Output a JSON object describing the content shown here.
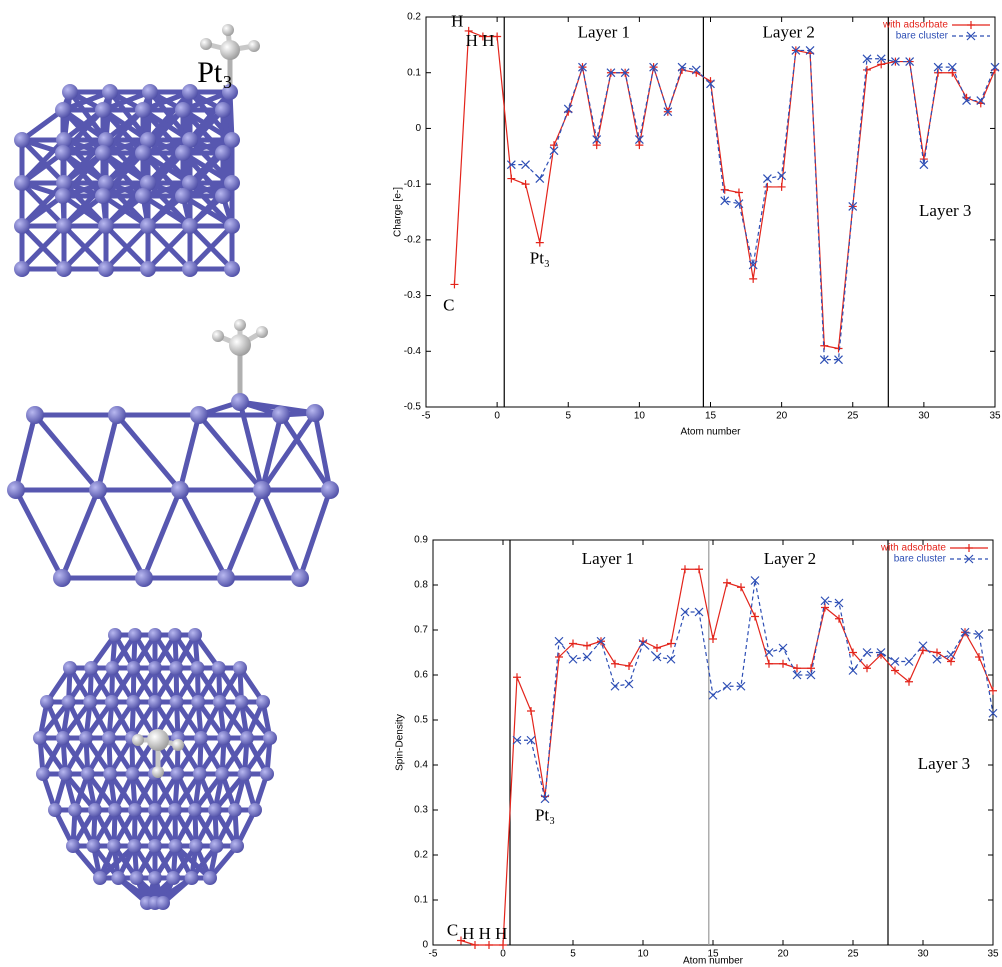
{
  "structures": {
    "label": "Pt₃"
  },
  "chart_data": [
    {
      "type": "line",
      "xlabel": "Atom number",
      "ylabel": "Charge [e-]",
      "x": [
        -3,
        -2,
        -1,
        0,
        1,
        2,
        3,
        4,
        5,
        6,
        7,
        8,
        9,
        10,
        11,
        12,
        13,
        14,
        15,
        16,
        17,
        18,
        19,
        20,
        21,
        22,
        23,
        24,
        25,
        26,
        27,
        28,
        29,
        30,
        31,
        32,
        33,
        34,
        35
      ],
      "series": [
        {
          "name": "with adsorbate",
          "color": "#e3241b",
          "dash": false,
          "marker": "+",
          "values": [
            -0.28,
            0.175,
            0.165,
            0.165,
            -0.09,
            -0.1,
            -0.205,
            -0.03,
            0.03,
            0.11,
            -0.03,
            0.1,
            0.1,
            -0.03,
            0.11,
            0.03,
            0.105,
            0.1,
            0.085,
            -0.11,
            -0.115,
            -0.27,
            -0.105,
            -0.105,
            0.14,
            0.135,
            -0.39,
            -0.395,
            -0.14,
            0.105,
            0.115,
            0.12,
            0.12,
            -0.055,
            0.1,
            0.1,
            0.055,
            0.045,
            0.105
          ]
        },
        {
          "name": "bare cluster",
          "color": "#2e4fb5",
          "dash": true,
          "marker": "x",
          "values": [
            null,
            null,
            null,
            null,
            -0.065,
            -0.065,
            -0.09,
            -0.04,
            0.035,
            0.11,
            -0.02,
            0.1,
            0.1,
            -0.02,
            0.11,
            0.03,
            0.11,
            0.105,
            0.08,
            -0.13,
            -0.135,
            -0.245,
            -0.09,
            -0.085,
            0.14,
            0.14,
            -0.415,
            -0.415,
            -0.14,
            0.125,
            0.125,
            0.12,
            0.12,
            -0.065,
            0.11,
            0.11,
            0.05,
            0.05,
            0.11
          ]
        }
      ],
      "xlim": [
        -5,
        35
      ],
      "xticks": [
        -5,
        0,
        5,
        10,
        15,
        20,
        25,
        30,
        35
      ],
      "ylim": [
        -0.5,
        0.2
      ],
      "yticks": [
        -0.5,
        -0.4,
        -0.3,
        -0.2,
        -0.1,
        0,
        0.1,
        0.2
      ],
      "vlines": [
        0.5,
        14.5,
        27.5
      ],
      "vline_colors": [
        "#000000",
        "#000000",
        "#000000"
      ],
      "annotations": [
        "H",
        "H H",
        "C",
        "Pt₃",
        "Layer 1",
        "Layer 2",
        "Layer 3"
      ],
      "legend": "upper right",
      "grid": false
    },
    {
      "type": "line",
      "xlabel": "Atom number",
      "ylabel": "Spin-Density",
      "x": [
        -3,
        -2,
        -1,
        0,
        1,
        2,
        3,
        4,
        5,
        6,
        7,
        8,
        9,
        10,
        11,
        12,
        13,
        14,
        15,
        16,
        17,
        18,
        19,
        20,
        21,
        22,
        23,
        24,
        25,
        26,
        27,
        28,
        29,
        30,
        31,
        32,
        33,
        34,
        35
      ],
      "series": [
        {
          "name": "with adsorbate",
          "color": "#e3241b",
          "dash": false,
          "marker": "+",
          "values": [
            0.01,
            0,
            0,
            0,
            0.595,
            0.52,
            0.33,
            0.64,
            0.67,
            0.665,
            0.675,
            0.625,
            0.62,
            0.675,
            0.66,
            0.67,
            0.835,
            0.835,
            0.68,
            0.805,
            0.795,
            0.73,
            0.625,
            0.625,
            0.615,
            0.615,
            0.75,
            0.725,
            0.65,
            0.615,
            0.645,
            0.61,
            0.585,
            0.655,
            0.65,
            0.63,
            0.695,
            0.64,
            0.565
          ]
        },
        {
          "name": "bare cluster",
          "color": "#2e4fb5",
          "dash": true,
          "marker": "x",
          "values": [
            null,
            null,
            null,
            null,
            0.455,
            0.455,
            0.325,
            0.675,
            0.635,
            0.64,
            0.675,
            0.575,
            0.58,
            0.67,
            0.64,
            0.635,
            0.74,
            0.74,
            0.555,
            0.575,
            0.575,
            0.81,
            0.65,
            0.66,
            0.6,
            0.6,
            0.765,
            0.76,
            0.61,
            0.65,
            0.65,
            0.63,
            0.63,
            0.665,
            0.635,
            0.645,
            0.695,
            0.69,
            0.515
          ]
        }
      ],
      "xlim": [
        -5,
        35
      ],
      "xticks": [
        -5,
        0,
        5,
        10,
        15,
        20,
        25,
        30,
        35
      ],
      "ylim": [
        0,
        0.9
      ],
      "yticks": [
        0,
        0.1,
        0.2,
        0.3,
        0.4,
        0.5,
        0.6,
        0.7,
        0.8,
        0.9
      ],
      "vlines": [
        0.5,
        14.7,
        27.5
      ],
      "vline_colors": [
        "#000000",
        "#999999",
        "#000000"
      ],
      "annotations": [
        "C",
        "H H H",
        "Pt₃",
        "Layer 1",
        "Layer 2",
        "Layer 3"
      ],
      "legend": "upper right",
      "grid": false
    }
  ]
}
